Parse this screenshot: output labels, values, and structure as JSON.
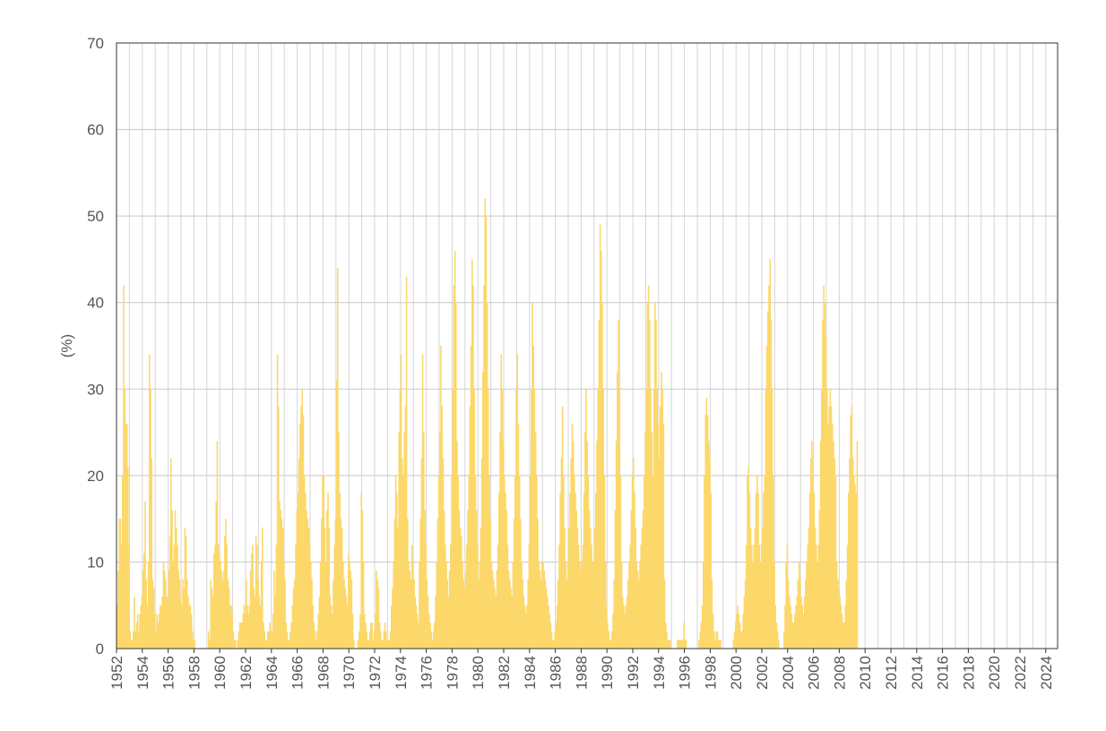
{
  "chart_data": {
    "type": "bar",
    "title": "",
    "xlabel": "",
    "ylabel": "(%)",
    "xlim": [
      1952,
      2024.917
    ],
    "ylim": [
      0,
      70
    ],
    "yticks": [
      0,
      10,
      20,
      30,
      40,
      50,
      60,
      70
    ],
    "xtick_labels": [
      "1952",
      "1954",
      "1956",
      "1958",
      "1960",
      "1962",
      "1964",
      "1966",
      "1968",
      "1970",
      "1972",
      "1974",
      "1976",
      "1978",
      "1980",
      "1982",
      "1984",
      "1986",
      "1988",
      "1990",
      "1992",
      "1994",
      "1996",
      "1998",
      "2000",
      "2002",
      "2004",
      "2006",
      "2008",
      "2010",
      "2012",
      "2014",
      "2016",
      "2018",
      "2020",
      "2022",
      "2024"
    ],
    "grid": true,
    "series_color": "#fcd86a",
    "frequency": "monthly",
    "x_start": "1952-01",
    "values": [
      5,
      9,
      15,
      15,
      12,
      20,
      42,
      30,
      26,
      26,
      21,
      12,
      2,
      1,
      1,
      2,
      6,
      2,
      3,
      4,
      2,
      4,
      5,
      6,
      9,
      11,
      17,
      8,
      5,
      10,
      34,
      30,
      22,
      8,
      7,
      4,
      2,
      4,
      3,
      4,
      5,
      5,
      6,
      10,
      9,
      8,
      6,
      6,
      9,
      13,
      22,
      16,
      10,
      12,
      16,
      14,
      12,
      9,
      8,
      6,
      5,
      8,
      7,
      14,
      13,
      8,
      6,
      5,
      5,
      4,
      2,
      1,
      1,
      0,
      0,
      0,
      0,
      0,
      0,
      0,
      0,
      0,
      0,
      0,
      0,
      2,
      1,
      8,
      7,
      6,
      11,
      12,
      17,
      24,
      12,
      11,
      10,
      9,
      8,
      9,
      13,
      15,
      12,
      8,
      7,
      5,
      5,
      4,
      2,
      1,
      1,
      0,
      1,
      2,
      3,
      3,
      3,
      4,
      5,
      4,
      8,
      5,
      4,
      5,
      9,
      11,
      12,
      7,
      6,
      13,
      12,
      8,
      6,
      5,
      10,
      14,
      3,
      2,
      1,
      1,
      2,
      2,
      3,
      2,
      2,
      4,
      9,
      6,
      12,
      34,
      28,
      17,
      16,
      15,
      14,
      10,
      8,
      3,
      2,
      1,
      1,
      2,
      3,
      5,
      7,
      8,
      12,
      16,
      18,
      22,
      26,
      28,
      30,
      27,
      20,
      18,
      16,
      15,
      14,
      12,
      10,
      8,
      5,
      3,
      2,
      1,
      2,
      4,
      6,
      10,
      15,
      20,
      20,
      14,
      10,
      16,
      18,
      14,
      6,
      5,
      4,
      8,
      12,
      15,
      31,
      44,
      25,
      18,
      15,
      14,
      10,
      8,
      7,
      6,
      5,
      11,
      10,
      9,
      8,
      4,
      1,
      0,
      0,
      0,
      1,
      2,
      4,
      18,
      16,
      10,
      4,
      3,
      2,
      1,
      1,
      2,
      3,
      3,
      1,
      2,
      4,
      9,
      8,
      7,
      3,
      2,
      1,
      1,
      2,
      3,
      2,
      1,
      1,
      1,
      2,
      5,
      7,
      10,
      15,
      20,
      18,
      14,
      25,
      30,
      34,
      22,
      20,
      25,
      28,
      43,
      15,
      10,
      9,
      8,
      12,
      10,
      8,
      6,
      5,
      4,
      3,
      10,
      15,
      22,
      34,
      25,
      16,
      12,
      8,
      6,
      4,
      3,
      2,
      1,
      2,
      3,
      6,
      10,
      15,
      20,
      25,
      35,
      28,
      22,
      16,
      12,
      10,
      8,
      6,
      9,
      12,
      20,
      30,
      42,
      46,
      40,
      24,
      20,
      16,
      14,
      13,
      10,
      8,
      7,
      9,
      12,
      16,
      20,
      28,
      35,
      45,
      42,
      30,
      20,
      16,
      12,
      8,
      10,
      14,
      22,
      32,
      42,
      52,
      50,
      40,
      30,
      20,
      15,
      10,
      9,
      8,
      7,
      6,
      9,
      12,
      18,
      25,
      34,
      30,
      24,
      20,
      18,
      16,
      12,
      9,
      8,
      7,
      6,
      10,
      15,
      20,
      30,
      34,
      26,
      20,
      15,
      10,
      8,
      6,
      5,
      4,
      5,
      8,
      12,
      20,
      30,
      40,
      35,
      30,
      25,
      20,
      15,
      10,
      9,
      8,
      10,
      10,
      9,
      8,
      7,
      6,
      5,
      4,
      3,
      2,
      1,
      1,
      2,
      3,
      5,
      8,
      12,
      18,
      22,
      28,
      20,
      14,
      10,
      8,
      10,
      14,
      18,
      22,
      26,
      24,
      20,
      18,
      16,
      14,
      12,
      10,
      9,
      10,
      12,
      18,
      25,
      30,
      24,
      20,
      16,
      14,
      12,
      10,
      10,
      14,
      18,
      24,
      30,
      38,
      49,
      46,
      40,
      30,
      20,
      10,
      5,
      3,
      2,
      1,
      1,
      2,
      4,
      8,
      16,
      24,
      32,
      38,
      30,
      20,
      10,
      6,
      5,
      4,
      5,
      6,
      8,
      10,
      12,
      16,
      20,
      22,
      18,
      14,
      10,
      9,
      8,
      10,
      12,
      14,
      16,
      20,
      25,
      30,
      40,
      42,
      38,
      30,
      25,
      20,
      30,
      40,
      38,
      30,
      26,
      22,
      28,
      32,
      30,
      26,
      8,
      3,
      2,
      1,
      1,
      1,
      0,
      0,
      0,
      0,
      0,
      0,
      1,
      1,
      1,
      1,
      1,
      1,
      3,
      1,
      1,
      0,
      0,
      0,
      0,
      0,
      0,
      0,
      0,
      0,
      0,
      0,
      1,
      2,
      3,
      5,
      10,
      20,
      27,
      29,
      27,
      24,
      22,
      18,
      8,
      4,
      2,
      1,
      2,
      2,
      1,
      1,
      1,
      0,
      0,
      0,
      0,
      0,
      0,
      0,
      0,
      0,
      0,
      0,
      1,
      2,
      3,
      4,
      5,
      4,
      3,
      2,
      2,
      4,
      6,
      8,
      12,
      20,
      21,
      18,
      14,
      12,
      10,
      12,
      14,
      18,
      20,
      18,
      12,
      10,
      12,
      14,
      18,
      20,
      30,
      35,
      39,
      42,
      45,
      38,
      30,
      20,
      10,
      5,
      3,
      2,
      1,
      0,
      0,
      0,
      0,
      2,
      5,
      10,
      12,
      8,
      6,
      5,
      4,
      3,
      3,
      4,
      5,
      6,
      8,
      10,
      8,
      6,
      5,
      4,
      6,
      8,
      10,
      12,
      14,
      18,
      22,
      24,
      20,
      18,
      14,
      12,
      10,
      12,
      16,
      24,
      30,
      38,
      42,
      40,
      36,
      30,
      26,
      28,
      30,
      28,
      26,
      24,
      22,
      20,
      10,
      8,
      7,
      6,
      5,
      4,
      3,
      3,
      5,
      8,
      12,
      18,
      22,
      27,
      28,
      22,
      20,
      19,
      18,
      24
    ]
  }
}
